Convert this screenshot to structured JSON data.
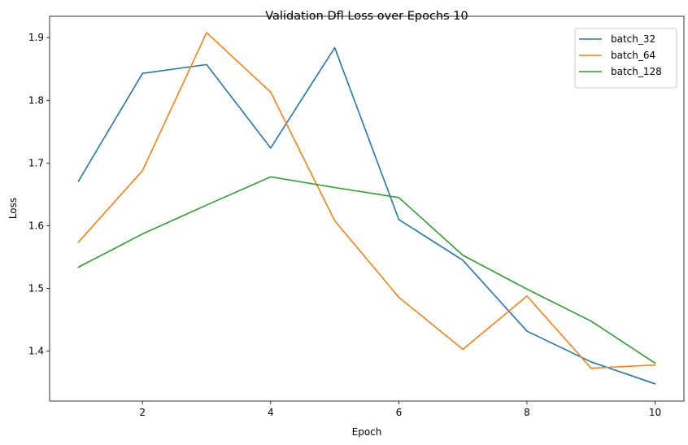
{
  "chart_data": {
    "type": "line",
    "title": "Validation Dfl Loss over Epochs 10",
    "xlabel": "Epoch",
    "ylabel": "Loss",
    "x": [
      1,
      2,
      3,
      4,
      5,
      6,
      7,
      8,
      9,
      10
    ],
    "xlim": [
      0.55,
      10.45
    ],
    "ylim": [
      1.3205,
      1.934
    ],
    "xticks": [
      2,
      4,
      6,
      8,
      10
    ],
    "yticks": [
      1.4,
      1.5,
      1.6,
      1.7,
      1.8,
      1.9
    ],
    "xtick_labels": [
      "2",
      "4",
      "6",
      "8",
      "10"
    ],
    "ytick_labels": [
      "1.4",
      "1.5",
      "1.6",
      "1.7",
      "1.8",
      "1.9"
    ],
    "grid": false,
    "legend_position": "top-right",
    "series": [
      {
        "name": "batch_32",
        "color": "#1f77b4",
        "values": [
          1.671,
          1.843,
          1.857,
          1.724,
          1.884,
          1.61,
          1.545,
          1.432,
          1.383,
          1.348
        ]
      },
      {
        "name": "batch_64",
        "color": "#ff7f0e",
        "values": [
          1.574,
          1.688,
          1.908,
          1.813,
          1.608,
          1.486,
          1.403,
          1.488,
          1.373,
          1.378
        ]
      },
      {
        "name": "batch_128",
        "color": "#2ca02c",
        "values": [
          1.534,
          1.587,
          1.633,
          1.678,
          1.661,
          1.645,
          1.553,
          1.499,
          1.448,
          1.381
        ]
      }
    ]
  }
}
